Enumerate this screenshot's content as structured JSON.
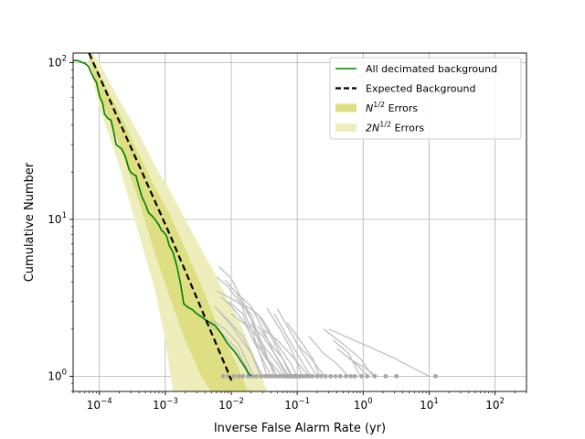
{
  "chart_data": {
    "type": "line",
    "xlabel": "Inverse False Alarm Rate (yr)",
    "ylabel": "Cumulative Number",
    "xscale": "log",
    "yscale": "log",
    "xlim": [
      4e-05,
      300
    ],
    "ylim": [
      0.8,
      115
    ],
    "grid": true,
    "legend_position": "upper right",
    "x_ticks": [
      {
        "value": 0.0001,
        "mant": "10",
        "exp": "−4"
      },
      {
        "value": 0.001,
        "mant": "10",
        "exp": "−3"
      },
      {
        "value": 0.01,
        "mant": "10",
        "exp": "−2"
      },
      {
        "value": 0.1,
        "mant": "10",
        "exp": "−1"
      },
      {
        "value": 1,
        "mant": "10",
        "exp": "0"
      },
      {
        "value": 10,
        "mant": "10",
        "exp": "1"
      },
      {
        "value": 100,
        "mant": "10",
        "exp": "2"
      }
    ],
    "y_ticks": [
      {
        "value": 1,
        "mant": "10",
        "exp": "0"
      },
      {
        "value": 10,
        "mant": "10",
        "exp": "1"
      },
      {
        "value": 100,
        "mant": "10",
        "exp": "2"
      }
    ],
    "legend": [
      {
        "label": "All decimated background",
        "style": "line",
        "color": "#008000"
      },
      {
        "label": "Expected Background",
        "style": "dashed",
        "color": "#000000"
      },
      {
        "label": "N",
        "sup": "1/2",
        "suffix": " Errors",
        "style": "patch",
        "color": "#dede82"
      },
      {
        "label": "2N",
        "sup": "1/2",
        "suffix": " Errors",
        "style": "patch",
        "color": "#eeeebc"
      }
    ],
    "expected_background": {
      "color": "#000000",
      "x": [
        7e-05,
        0.000167,
        0.000444,
        0.00117,
        0.00316,
        0.0101
      ],
      "y": [
        115,
        50,
        20,
        8,
        3,
        0.94
      ]
    },
    "band_1sigma": {
      "color": "#dede82",
      "lower": [
        [
          7e-05,
          104
        ],
        [
          0.0001,
          62
        ],
        [
          0.0002,
          30
        ],
        [
          0.0004,
          13
        ],
        [
          0.0007,
          6
        ],
        [
          0.0012,
          3.1
        ],
        [
          0.002,
          1.7
        ],
        [
          0.0035,
          1
        ],
        [
          0.005,
          0.8
        ]
      ],
      "upper": [
        [
          7e-05,
          118
        ],
        [
          0.0001,
          85
        ],
        [
          0.0002,
          48
        ],
        [
          0.0004,
          26
        ],
        [
          0.0007,
          16
        ],
        [
          0.0012,
          10.5
        ],
        [
          0.002,
          6.5
        ],
        [
          0.0035,
          3.8
        ],
        [
          0.0065,
          2
        ],
        [
          0.012,
          1.2
        ],
        [
          0.018,
          0.8
        ]
      ]
    },
    "band_2sigma": {
      "color": "#eeeebc",
      "lower": [
        [
          7e-05,
          98
        ],
        [
          0.0001,
          52
        ],
        [
          0.0002,
          22
        ],
        [
          0.0004,
          8
        ],
        [
          0.0007,
          3.5
        ],
        [
          0.001,
          1.7
        ],
        [
          0.0013,
          0.8
        ]
      ],
      "upper": [
        [
          7e-05,
          122
        ],
        [
          0.0001,
          100
        ],
        [
          0.0002,
          58
        ],
        [
          0.0004,
          35
        ],
        [
          0.0007,
          22
        ],
        [
          0.0012,
          15
        ],
        [
          0.002,
          10
        ],
        [
          0.0035,
          6.5
        ],
        [
          0.006,
          4.3
        ],
        [
          0.01,
          2.8
        ],
        [
          0.016,
          1.9
        ],
        [
          0.025,
          1.2
        ],
        [
          0.035,
          0.8
        ]
      ]
    },
    "series": [
      {
        "name": "All decimated background",
        "color": "#008000",
        "x": [
          4e-05,
          4.7e-05,
          5.5e-05,
          6e-05,
          6.8e-05,
          7.5e-05,
          8.2e-05,
          9e-05,
          0.000102,
          0.000112,
          0.00012,
          0.000135,
          0.00015,
          0.000165,
          0.00018,
          0.0002,
          0.00022,
          0.00025,
          0.00028,
          0.0003,
          0.00032,
          0.00036,
          0.0004,
          0.00044,
          0.0005,
          0.00056,
          0.00062,
          0.0007,
          0.0008,
          0.00088,
          0.00095,
          0.00105,
          0.00115,
          0.0013,
          0.0015,
          0.0017,
          0.0019,
          0.0022,
          0.0026,
          0.003,
          0.0035,
          0.004,
          0.0048,
          0.0057,
          0.0066,
          0.0075,
          0.0085,
          0.0095,
          0.011,
          0.0125,
          0.014,
          0.016,
          0.018,
          0.02
        ],
        "y": [
          103,
          103,
          100,
          99,
          95,
          86,
          80,
          75,
          60,
          55,
          47,
          44,
          43,
          36,
          30,
          29,
          28,
          25,
          21,
          20,
          19.5,
          19,
          16,
          14,
          12.5,
          11,
          10.6,
          10,
          9.2,
          8.5,
          8.3,
          7.8,
          6.8,
          6.2,
          5,
          3.9,
          2.9,
          2.75,
          2.65,
          2.5,
          2.4,
          2.3,
          2.2,
          2.1,
          1.95,
          1.8,
          1.65,
          1.55,
          1.45,
          1.35,
          1.25,
          1.15,
          1.05,
          1
        ]
      }
    ],
    "trials": {
      "color": "#c0c0c0",
      "tails": [
        [
          [
            0.0065,
            5
          ],
          [
            0.01,
            4.2
          ],
          [
            0.018,
            2.6
          ],
          [
            0.03,
            1.4
          ],
          [
            0.05,
            1
          ]
        ],
        [
          [
            0.006,
            4.3
          ],
          [
            0.009,
            3.7
          ],
          [
            0.014,
            2.9
          ],
          [
            0.022,
            1.8
          ],
          [
            0.035,
            1
          ]
        ],
        [
          [
            0.008,
            4.1
          ],
          [
            0.012,
            3.4
          ],
          [
            0.02,
            2.3
          ],
          [
            0.03,
            1.6
          ],
          [
            0.045,
            1
          ]
        ],
        [
          [
            0.006,
            3.5
          ],
          [
            0.012,
            3
          ],
          [
            0.02,
            2.5
          ],
          [
            0.03,
            1.5
          ],
          [
            0.05,
            1
          ]
        ],
        [
          [
            0.007,
            3.2
          ],
          [
            0.01,
            2.8
          ],
          [
            0.016,
            2.2
          ],
          [
            0.025,
            1.5
          ],
          [
            0.04,
            1
          ]
        ],
        [
          [
            0.0055,
            2.8
          ],
          [
            0.008,
            2.4
          ],
          [
            0.015,
            1.8
          ],
          [
            0.03,
            1
          ]
        ],
        [
          [
            0.0065,
            2.6
          ],
          [
            0.01,
            2.1
          ],
          [
            0.02,
            1.4
          ],
          [
            0.028,
            1
          ]
        ],
        [
          [
            0.005,
            2.3
          ],
          [
            0.008,
            2
          ],
          [
            0.013,
            1.6
          ],
          [
            0.022,
            1
          ]
        ],
        [
          [
            0.004,
            2.2
          ],
          [
            0.007,
            1.9
          ],
          [
            0.012,
            1.5
          ],
          [
            0.02,
            1
          ]
        ],
        [
          [
            0.009,
            3
          ],
          [
            0.015,
            2.5
          ],
          [
            0.02,
            1.8
          ],
          [
            0.035,
            1.3
          ],
          [
            0.06,
            1
          ]
        ],
        [
          [
            0.012,
            3.4
          ],
          [
            0.02,
            2.8
          ],
          [
            0.03,
            2
          ],
          [
            0.045,
            1.4
          ],
          [
            0.07,
            1
          ]
        ],
        [
          [
            0.015,
            2.9
          ],
          [
            0.025,
            2.5
          ],
          [
            0.04,
            1.8
          ],
          [
            0.06,
            1.3
          ],
          [
            0.08,
            1
          ]
        ],
        [
          [
            0.02,
            2.7
          ],
          [
            0.03,
            2.3
          ],
          [
            0.05,
            1.6
          ],
          [
            0.08,
            1.2
          ],
          [
            0.1,
            1
          ]
        ],
        [
          [
            0.01,
            2.5
          ],
          [
            0.02,
            2
          ],
          [
            0.03,
            1.6
          ],
          [
            0.05,
            1.2
          ],
          [
            0.065,
            1
          ]
        ],
        [
          [
            0.018,
            2.2
          ],
          [
            0.03,
            1.8
          ],
          [
            0.045,
            1.4
          ],
          [
            0.075,
            1
          ]
        ],
        [
          [
            0.025,
            2.1
          ],
          [
            0.04,
            1.6
          ],
          [
            0.06,
            1.3
          ],
          [
            0.085,
            1
          ]
        ],
        [
          [
            0.035,
            2.7
          ],
          [
            0.055,
            2
          ],
          [
            0.08,
            1.5
          ],
          [
            0.12,
            1
          ]
        ],
        [
          [
            0.03,
            2
          ],
          [
            0.05,
            1.7
          ],
          [
            0.09,
            1.3
          ],
          [
            0.15,
            1
          ]
        ],
        [
          [
            0.045,
            2.5
          ],
          [
            0.07,
            1.8
          ],
          [
            0.11,
            1.3
          ],
          [
            0.16,
            1
          ]
        ],
        [
          [
            0.07,
            2.2
          ],
          [
            0.11,
            1.7
          ],
          [
            0.17,
            1.3
          ],
          [
            0.22,
            1
          ]
        ],
        [
          [
            0.1,
            1.6
          ],
          [
            0.16,
            1.3
          ],
          [
            0.26,
            1
          ]
        ],
        [
          [
            0.05,
            2.7
          ],
          [
            0.08,
            1.9
          ],
          [
            0.12,
            1.4
          ],
          [
            0.2,
            1
          ]
        ],
        [
          [
            0.15,
            1.8
          ],
          [
            0.25,
            1.4
          ],
          [
            0.4,
            1.2
          ],
          [
            0.6,
            1
          ]
        ],
        [
          [
            0.25,
            2
          ],
          [
            0.5,
            1.6
          ],
          [
            0.9,
            1.3
          ],
          [
            1.4,
            1
          ]
        ],
        [
          [
            0.4,
            1.5
          ],
          [
            0.7,
            1.25
          ],
          [
            1.2,
            1
          ]
        ],
        [
          [
            0.35,
            1.7
          ],
          [
            0.6,
            1.4
          ],
          [
            0.9,
            1
          ]
        ],
        [
          [
            0.6,
            1.3
          ],
          [
            1,
            1.15
          ],
          [
            1.6,
            1
          ]
        ],
        [
          [
            0.3,
            2
          ],
          [
            1,
            1.6
          ],
          [
            3,
            1.3
          ],
          [
            10,
            1
          ]
        ]
      ],
      "end_markers_x": [
        0.0075,
        0.009,
        0.011,
        0.013,
        0.015,
        0.018,
        0.021,
        0.024,
        0.028,
        0.032,
        0.036,
        0.041,
        0.047,
        0.053,
        0.06,
        0.066,
        0.072,
        0.078,
        0.085,
        0.09,
        0.095,
        0.1,
        0.11,
        0.12,
        0.135,
        0.15,
        0.17,
        0.2,
        0.23,
        0.27,
        0.32,
        0.38,
        0.45,
        0.55,
        0.65,
        0.75,
        0.95,
        1.15,
        1.5,
        2.2,
        3.2,
        12.5
      ]
    }
  }
}
